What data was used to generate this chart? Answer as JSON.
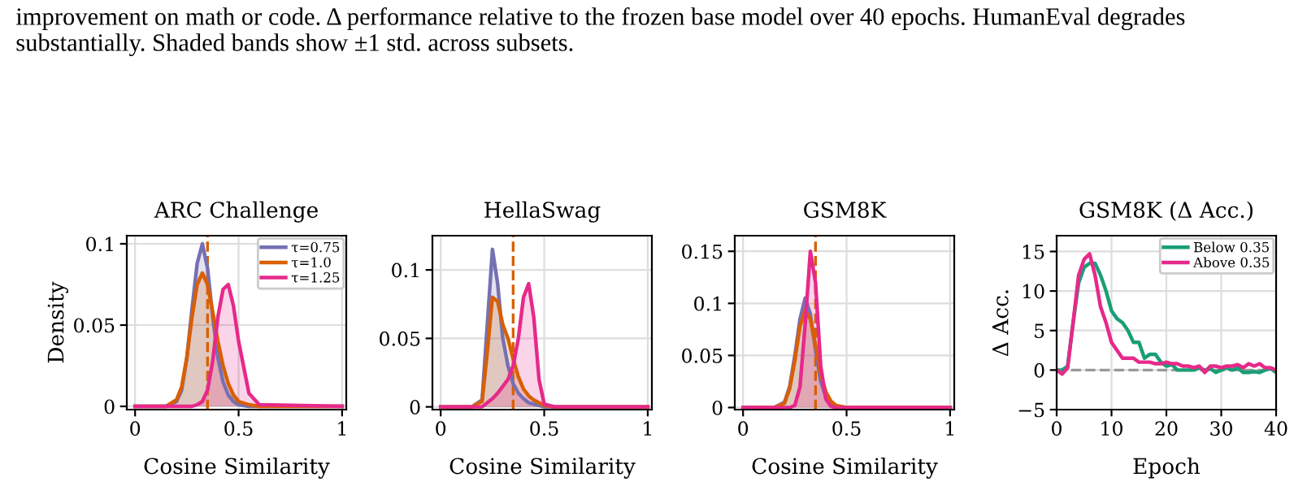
{
  "chart_data": [
    {
      "type": "area",
      "title": "ARC Challenge",
      "xlabel": "Cosine Similarity",
      "ylabel": "Density",
      "annotations": [
        "improvement on math or code. Δ performance relative to the frozen base model over 40 epochs. HumanEval degrades substantially. Shaded bands show ±1 std. across subsets."
      ],
      "x": [
        0,
        0.15,
        0.2,
        0.225,
        0.25,
        0.275,
        0.3,
        0.325,
        0.35,
        0.375,
        0.4,
        0.425,
        0.45,
        0.475,
        0.5,
        0.55,
        0.6,
        1
      ],
      "series": [
        {
          "name": "τ=0.75",
          "color": "#7570b3",
          "values": [
            0,
            0,
            0.003,
            0.01,
            0.03,
            0.06,
            0.088,
            0.1,
            0.085,
            0.055,
            0.03,
            0.015,
            0.007,
            0.003,
            0.001,
            0,
            0,
            0
          ]
        },
        {
          "name": "τ=1.0",
          "color": "#d95f02",
          "values": [
            0,
            0,
            0.004,
            0.012,
            0.03,
            0.055,
            0.075,
            0.082,
            0.075,
            0.058,
            0.04,
            0.025,
            0.014,
            0.007,
            0.003,
            0.001,
            0,
            0
          ]
        },
        {
          "name": "τ=1.25",
          "color": "#e7298a",
          "values": [
            0,
            0,
            0,
            0,
            0,
            0,
            0.001,
            0.003,
            0.01,
            0.028,
            0.055,
            0.072,
            0.075,
            0.062,
            0.04,
            0.008,
            0.001,
            0
          ]
        }
      ],
      "xlim": [
        -0.04,
        1.02
      ],
      "ylim": [
        -0.002,
        0.105
      ],
      "xticks": [
        0,
        0.5,
        1
      ],
      "yticks": [
        0,
        0.05,
        0.1
      ],
      "ref_lines": [
        {
          "axis": "x",
          "value": 0.35,
          "color": "#d95f02",
          "line_style": "dashed"
        }
      ],
      "grid": true,
      "legend": "top right"
    },
    {
      "type": "area",
      "title": "HellaSwag",
      "xlabel": "Cosine Similarity",
      "x": [
        0,
        0.15,
        0.2,
        0.225,
        0.25,
        0.275,
        0.3,
        0.325,
        0.35,
        0.375,
        0.4,
        0.425,
        0.45,
        0.475,
        0.5,
        0.55,
        0.6,
        1
      ],
      "series": [
        {
          "color": "#7570b3",
          "values": [
            0,
            0,
            0.005,
            0.06,
            0.115,
            0.09,
            0.05,
            0.03,
            0.017,
            0.01,
            0.006,
            0.003,
            0.002,
            0.001,
            0,
            0,
            0,
            0
          ]
        },
        {
          "color": "#d95f02",
          "values": [
            0,
            0,
            0.004,
            0.04,
            0.08,
            0.077,
            0.06,
            0.05,
            0.035,
            0.022,
            0.013,
            0.008,
            0.005,
            0.003,
            0.001,
            0,
            0,
            0
          ]
        },
        {
          "color": "#e7298a",
          "values": [
            0,
            0,
            0,
            0.003,
            0.006,
            0.01,
            0.015,
            0.02,
            0.03,
            0.05,
            0.08,
            0.09,
            0.065,
            0.02,
            0.002,
            0,
            0,
            0
          ]
        }
      ],
      "xlim": [
        -0.04,
        1.02
      ],
      "ylim": [
        -0.002,
        0.125
      ],
      "xticks": [
        0,
        0.5,
        1
      ],
      "yticks": [
        0,
        0.05,
        0.1
      ],
      "ref_lines": [
        {
          "axis": "x",
          "value": 0.35,
          "color": "#d95f02",
          "line_style": "dashed"
        }
      ],
      "grid": true
    },
    {
      "type": "area",
      "title": "GSM8K",
      "xlabel": "Cosine Similarity",
      "x": [
        0,
        0.15,
        0.2,
        0.225,
        0.25,
        0.275,
        0.3,
        0.325,
        0.35,
        0.375,
        0.4,
        0.425,
        0.45,
        0.475,
        0.5,
        0.55,
        0.6,
        1
      ],
      "series": [
        {
          "color": "#7570b3",
          "values": [
            0,
            0,
            0.005,
            0.02,
            0.05,
            0.085,
            0.105,
            0.09,
            0.055,
            0.025,
            0.01,
            0.004,
            0.001,
            0,
            0,
            0,
            0,
            0
          ]
        },
        {
          "color": "#d95f02",
          "values": [
            0,
            0,
            0.004,
            0.018,
            0.045,
            0.078,
            0.093,
            0.085,
            0.06,
            0.032,
            0.015,
            0.006,
            0.002,
            0.001,
            0,
            0,
            0,
            0
          ]
        },
        {
          "color": "#e7298a",
          "values": [
            0,
            0,
            0,
            0,
            0.002,
            0.02,
            0.08,
            0.15,
            0.12,
            0.04,
            0.008,
            0.001,
            0,
            0,
            0,
            0,
            0,
            0
          ]
        }
      ],
      "xlim": [
        -0.04,
        1.02
      ],
      "ylim": [
        -0.002,
        0.165
      ],
      "xticks": [
        0,
        0.5,
        1
      ],
      "yticks": [
        0,
        0.05,
        0.1,
        0.15
      ],
      "ref_lines": [
        {
          "axis": "x",
          "value": 0.35,
          "color": "#d95f02",
          "line_style": "dashed"
        }
      ],
      "grid": true
    },
    {
      "type": "line",
      "title": "GSM8K (Δ Acc.)",
      "xlabel": "Epoch",
      "ylabel": "Δ Acc.",
      "x": [
        0,
        1,
        2,
        3,
        4,
        5,
        6,
        7,
        8,
        9,
        10,
        11,
        12,
        13,
        14,
        15,
        16,
        17,
        18,
        19,
        20,
        21,
        22,
        23,
        24,
        25,
        26,
        27,
        28,
        29,
        30,
        31,
        32,
        33,
        34,
        35,
        36,
        37,
        38,
        39,
        40
      ],
      "series": [
        {
          "name": "Below 0.35",
          "color": "#1b9e77",
          "values": [
            0,
            0,
            0.5,
            6,
            11,
            13,
            13.5,
            13.5,
            12,
            10,
            7.5,
            6.5,
            6,
            5,
            3.5,
            3.5,
            1.5,
            2,
            2,
            1,
            0.5,
            0.7,
            0,
            0,
            0,
            0,
            0.3,
            0,
            0.2,
            -0.3,
            0,
            0.3,
            0,
            0.3,
            -0.3,
            -0.3,
            -0.2,
            -0.3,
            0,
            0.2,
            -0.3
          ]
        },
        {
          "name": "Above 0.35",
          "color": "#e7298a",
          "values": [
            0,
            -0.5,
            0.3,
            6,
            12,
            14,
            14.7,
            12,
            8,
            6,
            3.5,
            2.5,
            1.5,
            1.5,
            1.5,
            1,
            1,
            1,
            0.8,
            0.8,
            1,
            0.8,
            0.8,
            0.5,
            0.5,
            0.3,
            0.5,
            -0.3,
            0.5,
            0.5,
            0.3,
            0.5,
            0.5,
            0.7,
            0.3,
            0.8,
            0.5,
            0.8,
            0.3,
            0.3,
            0
          ]
        }
      ],
      "xlim": [
        0,
        40
      ],
      "ylim": [
        -5,
        17
      ],
      "xticks": [
        0,
        10,
        20,
        30,
        40
      ],
      "yticks": [
        {
          "value": -5,
          "label": "−5"
        },
        0,
        5,
        10,
        15
      ],
      "ref_lines": [
        {
          "axis": "y",
          "value": 0,
          "color": "#999999",
          "line_style": "dashed"
        }
      ],
      "grid": true,
      "legend": "top right"
    }
  ]
}
